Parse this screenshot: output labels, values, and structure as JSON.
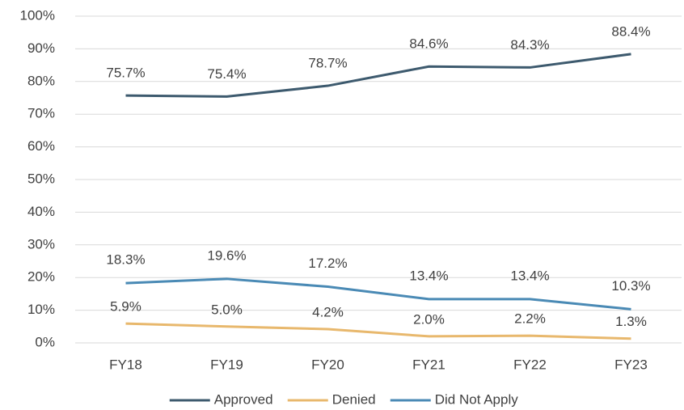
{
  "chart_data": {
    "type": "line",
    "categories": [
      "FY18",
      "FY19",
      "FY20",
      "FY21",
      "FY22",
      "FY23"
    ],
    "series": [
      {
        "name": "Approved",
        "color": "#3d5a6e",
        "values": [
          75.7,
          75.4,
          78.7,
          84.6,
          84.3,
          88.4
        ],
        "value_labels": [
          "75.7%",
          "75.4%",
          "78.7%",
          "84.6%",
          "84.3%",
          "88.4%"
        ]
      },
      {
        "name": "Denied",
        "color": "#e8b86d",
        "values": [
          5.9,
          5.0,
          4.2,
          2.0,
          2.2,
          1.3
        ],
        "value_labels": [
          "5.9%",
          "5.0%",
          "4.2%",
          "2.0%",
          "2.2%",
          "1.3%"
        ]
      },
      {
        "name": "Did Not Apply",
        "color": "#4a8ab5",
        "values": [
          18.3,
          19.6,
          17.2,
          13.4,
          13.4,
          10.3
        ],
        "value_labels": [
          "18.3%",
          "19.6%",
          "17.2%",
          "13.4%",
          "13.4%",
          "10.3%"
        ]
      }
    ],
    "ylim": [
      0,
      100
    ],
    "yticks": [
      {
        "value": 0,
        "label": "0%"
      },
      {
        "value": 10,
        "label": "10%"
      },
      {
        "value": 20,
        "label": "20%"
      },
      {
        "value": 30,
        "label": "30%"
      },
      {
        "value": 40,
        "label": "40%"
      },
      {
        "value": 50,
        "label": "50%"
      },
      {
        "value": 60,
        "label": "60%"
      },
      {
        "value": 70,
        "label": "70%"
      },
      {
        "value": 80,
        "label": "80%"
      },
      {
        "value": 90,
        "label": "90%"
      },
      {
        "value": 100,
        "label": "100%"
      }
    ],
    "grid": true,
    "legend": "bottom"
  }
}
